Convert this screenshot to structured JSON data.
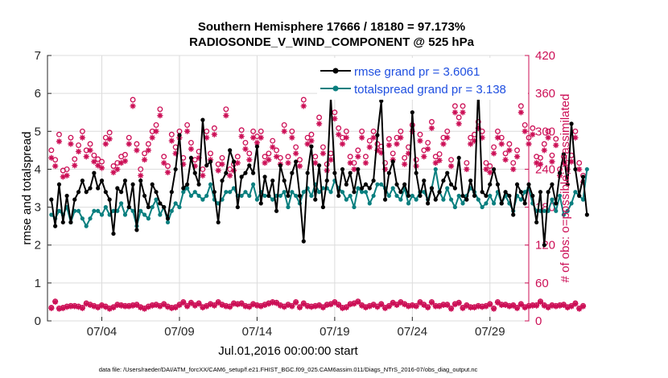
{
  "chart_data": {
    "type": "line",
    "title_line1": "Southern Hemisphere 17666 / 18180 = 97.173%",
    "title_line2": "RADIOSONDE_V_WIND_COMPONENT @ 525 hPa",
    "xlabel": "Jul.01,2016 00:00:00 start",
    "ylabel_left": "rmse and totalspread",
    "ylabel_right": "# of obs: o=possible; ×=assimilated",
    "footnote": "data file: /Users/raeder/DAI/ATM_forcXX/CAM6_setup/f.e21.FHIST_BGC.f09_025.CAM6assim.011/Diags_NTrS_2016-07/obs_diag_output.nc",
    "ylim_left": [
      0,
      7
    ],
    "ylim_right": [
      0,
      420
    ],
    "xlim": [
      0.5,
      31.5
    ],
    "yticks_left": [
      "0",
      "1",
      "2",
      "3",
      "4",
      "5",
      "6",
      "7"
    ],
    "yticks_right": [
      "0",
      "60",
      "120",
      "180",
      "240",
      "300",
      "360",
      "420"
    ],
    "xticks": [
      {
        "day": 4,
        "label": "07/04"
      },
      {
        "day": 9,
        "label": "07/09"
      },
      {
        "day": 14,
        "label": "07/14"
      },
      {
        "day": 19,
        "label": "07/19"
      },
      {
        "day": 24,
        "label": "07/24"
      },
      {
        "day": 29,
        "label": "07/29"
      }
    ],
    "x_start": 0.75,
    "x_step": 0.25,
    "rmse": {
      "name": "rmse grand pr = 3.6061",
      "color": "#000000",
      "values": [
        3.2,
        2.5,
        3.6,
        2.6,
        3.3,
        2.6,
        3.2,
        3.4,
        3.7,
        3.4,
        3.5,
        3.9,
        3.5,
        3.7,
        3.4,
        3.2,
        2.3,
        3.5,
        3.4,
        3.7,
        3.0,
        3.6,
        2.4,
        3.7,
        3.3,
        3.0,
        3.6,
        3.4,
        3.1,
        3.0,
        2.7,
        3.4,
        4.0,
        4.9,
        3.5,
        3.6,
        4.3,
        3.9,
        3.6,
        5.3,
        4.1,
        4.2,
        3.4,
        2.6,
        3.7,
        3.9,
        4.5,
        4.2,
        3.0,
        3.8,
        3.9,
        4.1,
        3.9,
        4.6,
        3.1,
        3.8,
        3.3,
        3.7,
        2.9,
        4.1,
        3.7,
        3.3,
        3.9,
        4.2,
        3.3,
        2.1,
        3.9,
        4.6,
        3.2,
        4.1,
        3.0,
        3.7,
        5.9,
        3.9,
        3.3,
        4.0,
        3.6,
        3.9,
        3.4,
        4.0,
        3.5,
        3.6,
        3.5,
        3.7,
        4.9,
        5.8,
        3.2,
        3.9,
        4.2,
        3.6,
        3.4,
        3.6,
        3.3,
        5.5,
        3.9,
        3.3,
        3.7,
        3.1,
        3.5,
        3.2,
        3.4,
        3.7,
        3.9,
        3.6,
        3.5,
        4.3,
        3.3,
        3.2,
        3.7,
        3.3,
        6.2,
        3.4,
        3.3,
        3.6,
        4.0,
        3.6,
        3.1,
        3.4,
        3.3,
        2.8,
        3.6,
        3.4,
        3.1,
        3.6,
        3.3,
        2.6,
        3.4,
        2.0,
        3.4,
        3.6,
        3.1,
        3.9,
        4.4,
        3.6,
        5.2,
        4.0,
        3.3,
        3.8,
        2.8
      ]
    },
    "totalspread": {
      "name": "totalspread grand pr = 3.138",
      "color": "#0a7f7f",
      "values": [
        2.8,
        2.7,
        2.9,
        2.8,
        3.0,
        2.6,
        2.9,
        2.9,
        2.7,
        2.5,
        2.7,
        2.9,
        2.9,
        2.8,
        3.0,
        2.8,
        2.9,
        2.9,
        3.1,
        2.8,
        3.0,
        2.9,
        2.5,
        2.9,
        2.8,
        2.7,
        3.0,
        3.2,
        2.8,
        3.0,
        2.6,
        2.9,
        3.1,
        3.0,
        3.4,
        3.5,
        3.3,
        3.4,
        3.3,
        3.2,
        3.3,
        3.6,
        3.2,
        3.1,
        3.2,
        3.4,
        3.4,
        3.5,
        3.3,
        3.3,
        3.4,
        3.3,
        3.6,
        3.2,
        3.4,
        3.3,
        3.3,
        3.2,
        3.3,
        3.3,
        3.4,
        3.0,
        3.4,
        3.3,
        3.1,
        3.4,
        3.5,
        3.3,
        3.6,
        3.4,
        3.5,
        3.5,
        3.4,
        3.7,
        3.5,
        3.4,
        3.2,
        3.3,
        3.0,
        3.5,
        3.4,
        3.4,
        3.1,
        3.3,
        3.6,
        3.6,
        3.5,
        3.3,
        3.5,
        3.3,
        3.2,
        3.5,
        3.1,
        3.3,
        3.2,
        3.4,
        3.4,
        3.2,
        3.5,
        4.0,
        3.4,
        3.2,
        3.5,
        3.2,
        3.0,
        3.3,
        3.1,
        3.3,
        3.5,
        3.4,
        3.2,
        3.0,
        3.1,
        3.3,
        3.1,
        3.4,
        3.1,
        3.3,
        3.1,
        2.9,
        3.3,
        3.2,
        3.4,
        3.5,
        3.1,
        2.9,
        2.9,
        2.9,
        2.9,
        3.2,
        2.9,
        3.3,
        2.8,
        2.9,
        3.1,
        3.4,
        3.3,
        3.2,
        4.0
      ]
    },
    "obs_possible": {
      "color": "#cc0f56",
      "values": [
        21,
        31,
        20,
        21,
        23,
        24,
        24,
        23,
        21,
        28,
        26,
        24,
        22,
        25,
        23,
        20,
        22,
        26,
        25,
        24,
        24,
        25,
        26,
        22,
        20,
        23,
        25,
        26,
        24,
        27,
        23,
        21,
        22,
        26,
        30,
        24,
        29,
        25,
        28,
        22,
        24,
        27,
        25,
        30,
        26,
        24,
        23,
        28,
        27,
        28,
        24,
        23,
        27,
        25,
        24,
        26,
        28,
        30,
        29,
        25,
        23,
        26,
        24,
        30,
        22,
        28,
        24,
        23,
        24,
        25,
        22,
        26,
        27,
        30,
        26,
        21,
        22,
        27,
        28,
        31,
        25,
        22,
        24,
        26,
        23,
        27,
        21,
        24,
        29,
        26,
        30,
        27,
        24,
        25,
        24,
        30,
        26,
        22,
        30,
        24,
        24,
        26,
        26,
        20,
        27,
        29,
        21,
        25,
        22,
        22,
        24,
        23,
        24,
        27,
        20,
        30,
        26,
        26,
        24,
        25,
        21,
        27,
        22,
        24,
        25,
        25,
        31,
        25,
        22,
        25,
        24,
        25,
        26,
        22,
        24,
        28,
        20,
        24
      ]
    },
    "obs_assimilated": {
      "color": "#cc0f56",
      "values": [
        20,
        30,
        19,
        20,
        22,
        23,
        23,
        22,
        20,
        27,
        25,
        23,
        21,
        24,
        22,
        19,
        21,
        25,
        24,
        23,
        23,
        24,
        25,
        21,
        19,
        22,
        24,
        25,
        23,
        26,
        22,
        20,
        21,
        25,
        29,
        23,
        28,
        24,
        27,
        21,
        23,
        26,
        24,
        29,
        25,
        23,
        22,
        27,
        26,
        27,
        23,
        22,
        26,
        24,
        23,
        25,
        27,
        29,
        28,
        24,
        22,
        25,
        23,
        29,
        21,
        27,
        23,
        22,
        23,
        24,
        21,
        25,
        26,
        29,
        25,
        20,
        21,
        26,
        27,
        30,
        24,
        21,
        23,
        25,
        22,
        26,
        20,
        23,
        28,
        25,
        29,
        26,
        23,
        24,
        23,
        29,
        25,
        21,
        29,
        23,
        23,
        25,
        25,
        19,
        26,
        28,
        20,
        24,
        21,
        21,
        23,
        22,
        23,
        26,
        19,
        29,
        25,
        25,
        23,
        24,
        20,
        26,
        21,
        23,
        24,
        24,
        30,
        24,
        21,
        24,
        23,
        24,
        25,
        21,
        23,
        27,
        19,
        23
      ]
    },
    "obs_possible_high": {
      "values": [
        270,
        255,
        295,
        238,
        240,
        290,
        256,
        278,
        300,
        270,
        280,
        262,
        256,
        252,
        290,
        298,
        245,
        250,
        260,
        263,
        290,
        350,
        280,
        240,
        265,
        280,
        300,
        310,
        335,
        260,
        245,
        295,
        275,
        300,
        258,
        310,
        282,
        255,
        268,
        240,
        300,
        265,
        305,
        248,
        258,
        335,
        240,
        248,
        260,
        302,
        282,
        265,
        300,
        292,
        300,
        260,
        265,
        285,
        270,
        258,
        310,
        260,
        300,
        275,
        255,
        350,
        290,
        295,
        260,
        322,
        275,
        248,
        265,
        330,
        305,
        290,
        300,
        260,
        250,
        270,
        300,
        260,
        285,
        300,
        280,
        276,
        250,
        288,
        265,
        290,
        300,
        258,
        275,
        310,
        255,
        295,
        270,
        282,
        315,
        260,
        264,
        290,
        300,
        255,
        340,
        322,
        340,
        250,
        290,
        295,
        315,
        300,
        250,
        245,
        275,
        300,
        290,
        265,
        280,
        250,
        270,
        340,
        310,
        290,
        305,
        260,
        258,
        280,
        300,
        262,
        288,
        240,
        260,
        250,
        262,
        300,
        250,
        230
      ]
    },
    "obs_assimilated_high": {
      "values": [
        258,
        245,
        284,
        228,
        230,
        280,
        246,
        268,
        290,
        260,
        270,
        252,
        246,
        242,
        280,
        288,
        235,
        240,
        250,
        253,
        280,
        340,
        270,
        230,
        255,
        270,
        290,
        300,
        325,
        250,
        235,
        285,
        265,
        290,
        248,
        300,
        272,
        245,
        258,
        230,
        290,
        255,
        295,
        238,
        248,
        325,
        230,
        238,
        250,
        292,
        272,
        255,
        290,
        282,
        290,
        250,
        255,
        275,
        260,
        248,
        300,
        250,
        290,
        265,
        245,
        340,
        280,
        285,
        250,
        312,
        265,
        238,
        255,
        320,
        295,
        280,
        290,
        250,
        240,
        260,
        290,
        250,
        275,
        290,
        270,
        266,
        240,
        278,
        255,
        280,
        290,
        248,
        265,
        300,
        245,
        285,
        260,
        272,
        305,
        250,
        254,
        280,
        290,
        245,
        330,
        312,
        330,
        240,
        280,
        285,
        305,
        290,
        240,
        235,
        265,
        290,
        280,
        255,
        270,
        240,
        260,
        330,
        300,
        280,
        295,
        250,
        248,
        270,
        290,
        252,
        278,
        230,
        250,
        240,
        252,
        290,
        240,
        220
      ]
    }
  }
}
